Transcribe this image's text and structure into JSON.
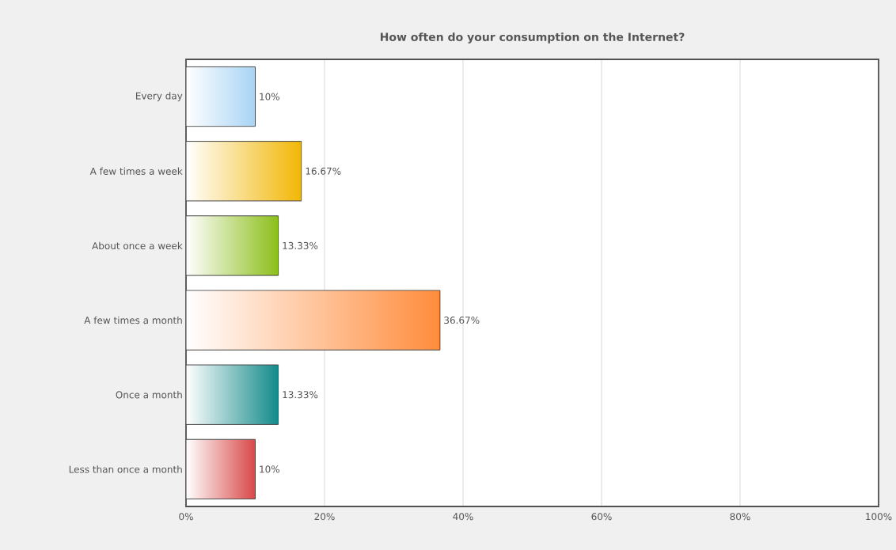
{
  "chart_data": {
    "type": "bar",
    "orientation": "horizontal",
    "title": "How often do your consumption on the Internet?",
    "categories": [
      "Every day",
      "A few times a week",
      "About once a week",
      "A few times a month",
      "Once a month",
      "Less than once a month"
    ],
    "values": [
      10,
      16.67,
      13.33,
      36.67,
      13.33,
      10
    ],
    "value_labels": [
      "10%",
      "16.67%",
      "13.33%",
      "36.67%",
      "13.33%",
      "10%"
    ],
    "colors": [
      "#a8d4f5",
      "#f2b705",
      "#8cbf1a",
      "#ff8c3c",
      "#138a8a",
      "#d94848"
    ],
    "xlim": [
      0,
      100
    ],
    "xticks": [
      {
        "value": 0,
        "label": "0%"
      },
      {
        "value": 20,
        "label": "20%"
      },
      {
        "value": 40,
        "label": "40%"
      },
      {
        "value": 60,
        "label": "60%"
      },
      {
        "value": 80,
        "label": "80%"
      },
      {
        "value": 100,
        "label": "100%"
      }
    ],
    "grid": "x"
  }
}
